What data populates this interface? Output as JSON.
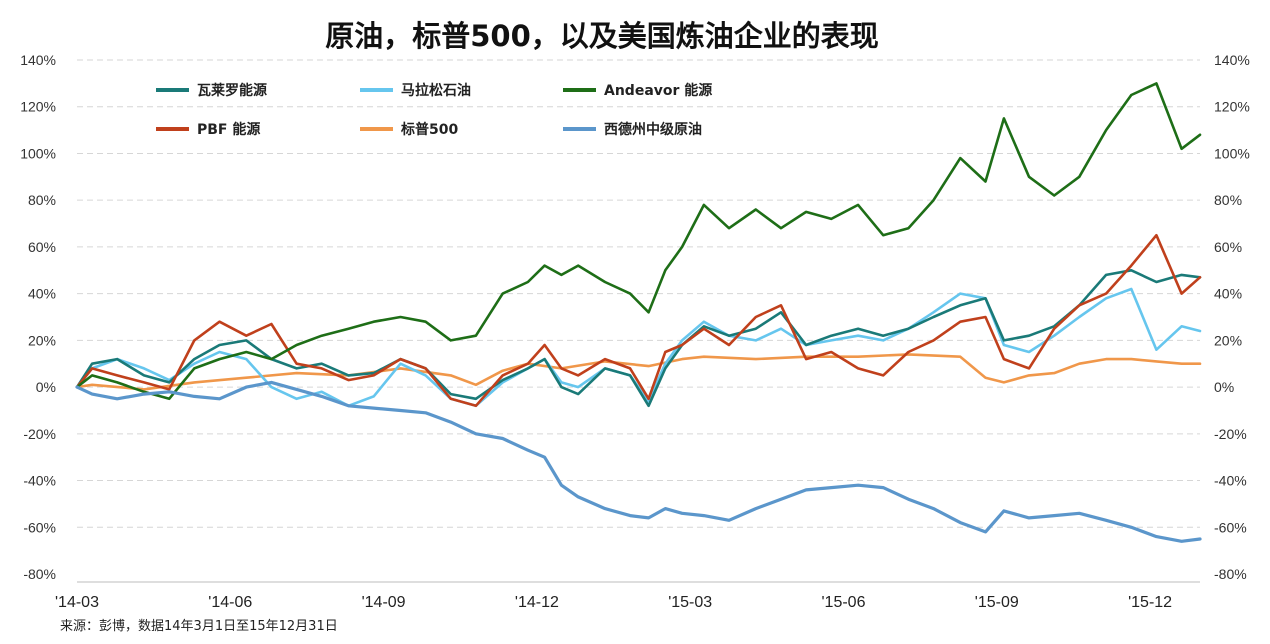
{
  "chart_data": {
    "type": "line",
    "title": "原油，标普500，以及美国炼油企业的表现",
    "source": "来源：彭博，数据14年3月1日至15年12月31日",
    "x_ticks": [
      "'14-03",
      "'14-06",
      "'14-09",
      "'14-12",
      "'15-03",
      "'15-06",
      "'15-09",
      "'15-12"
    ],
    "y_ticks": [
      "140%",
      "120%",
      "100%",
      "80%",
      "60%",
      "40%",
      "20%",
      "0%",
      "-20%",
      "-40%",
      "-60%",
      "-80%"
    ],
    "ylim": [
      -80,
      140
    ],
    "y_unit": "%",
    "grid": "horizontal dashed",
    "legend_position": "top-left",
    "x_start": "2014-03-01",
    "x_end": "2015-12-31",
    "series": [
      {
        "name": "瓦莱罗能源",
        "color": "#1a7a78",
        "points": [
          [
            "2014-03-01",
            0
          ],
          [
            "2014-03-10",
            10
          ],
          [
            "2014-03-25",
            12
          ],
          [
            "2014-04-10",
            5
          ],
          [
            "2014-04-25",
            2
          ],
          [
            "2014-05-10",
            12
          ],
          [
            "2014-05-25",
            18
          ],
          [
            "2014-06-10",
            20
          ],
          [
            "2014-06-25",
            12
          ],
          [
            "2014-07-10",
            8
          ],
          [
            "2014-07-25",
            10
          ],
          [
            "2014-08-10",
            5
          ],
          [
            "2014-08-25",
            6
          ],
          [
            "2014-09-10",
            12
          ],
          [
            "2014-09-25",
            8
          ],
          [
            "2014-10-10",
            -3
          ],
          [
            "2014-10-25",
            -5
          ],
          [
            "2014-11-10",
            3
          ],
          [
            "2014-11-25",
            8
          ],
          [
            "2014-12-05",
            12
          ],
          [
            "2014-12-15",
            0
          ],
          [
            "2014-12-25",
            -3
          ],
          [
            "2015-01-10",
            8
          ],
          [
            "2015-01-25",
            5
          ],
          [
            "2015-02-05",
            -8
          ],
          [
            "2015-02-15",
            8
          ],
          [
            "2015-02-25",
            18
          ],
          [
            "2015-03-10",
            26
          ],
          [
            "2015-03-25",
            22
          ],
          [
            "2015-04-10",
            25
          ],
          [
            "2015-04-25",
            32
          ],
          [
            "2015-05-10",
            18
          ],
          [
            "2015-05-25",
            22
          ],
          [
            "2015-06-10",
            25
          ],
          [
            "2015-06-25",
            22
          ],
          [
            "2015-07-10",
            25
          ],
          [
            "2015-07-25",
            30
          ],
          [
            "2015-08-10",
            35
          ],
          [
            "2015-08-25",
            38
          ],
          [
            "2015-09-05",
            20
          ],
          [
            "2015-09-20",
            22
          ],
          [
            "2015-10-05",
            26
          ],
          [
            "2015-10-20",
            35
          ],
          [
            "2015-11-05",
            48
          ],
          [
            "2015-11-20",
            50
          ],
          [
            "2015-12-05",
            45
          ],
          [
            "2015-12-20",
            48
          ],
          [
            "2015-12-31",
            47
          ]
        ]
      },
      {
        "name": "马拉松石油",
        "color": "#66c6ee",
        "points": [
          [
            "2014-03-01",
            0
          ],
          [
            "2014-03-10",
            8
          ],
          [
            "2014-03-25",
            12
          ],
          [
            "2014-04-10",
            8
          ],
          [
            "2014-04-25",
            3
          ],
          [
            "2014-05-10",
            10
          ],
          [
            "2014-05-25",
            15
          ],
          [
            "2014-06-10",
            12
          ],
          [
            "2014-06-25",
            0
          ],
          [
            "2014-07-10",
            -5
          ],
          [
            "2014-07-25",
            -2
          ],
          [
            "2014-08-10",
            -8
          ],
          [
            "2014-08-25",
            -4
          ],
          [
            "2014-09-10",
            10
          ],
          [
            "2014-09-25",
            5
          ],
          [
            "2014-10-10",
            -5
          ],
          [
            "2014-10-25",
            -8
          ],
          [
            "2014-11-10",
            2
          ],
          [
            "2014-11-25",
            8
          ],
          [
            "2014-12-05",
            12
          ],
          [
            "2014-12-15",
            2
          ],
          [
            "2014-12-25",
            0
          ],
          [
            "2015-01-10",
            8
          ],
          [
            "2015-01-25",
            5
          ],
          [
            "2015-02-05",
            -6
          ],
          [
            "2015-02-15",
            10
          ],
          [
            "2015-02-25",
            20
          ],
          [
            "2015-03-10",
            28
          ],
          [
            "2015-03-25",
            22
          ],
          [
            "2015-04-10",
            20
          ],
          [
            "2015-04-25",
            25
          ],
          [
            "2015-05-10",
            18
          ],
          [
            "2015-05-25",
            20
          ],
          [
            "2015-06-10",
            22
          ],
          [
            "2015-06-25",
            20
          ],
          [
            "2015-07-10",
            25
          ],
          [
            "2015-07-25",
            32
          ],
          [
            "2015-08-10",
            40
          ],
          [
            "2015-08-25",
            38
          ],
          [
            "2015-09-05",
            18
          ],
          [
            "2015-09-20",
            15
          ],
          [
            "2015-10-05",
            22
          ],
          [
            "2015-10-20",
            30
          ],
          [
            "2015-11-05",
            38
          ],
          [
            "2015-11-20",
            42
          ],
          [
            "2015-12-05",
            16
          ],
          [
            "2015-12-20",
            26
          ],
          [
            "2015-12-31",
            24
          ]
        ]
      },
      {
        "name": "Andeavor 能源",
        "color": "#1e6e17",
        "points": [
          [
            "2014-03-01",
            0
          ],
          [
            "2014-03-10",
            5
          ],
          [
            "2014-03-25",
            2
          ],
          [
            "2014-04-10",
            -2
          ],
          [
            "2014-04-25",
            -5
          ],
          [
            "2014-05-10",
            8
          ],
          [
            "2014-05-25",
            12
          ],
          [
            "2014-06-10",
            15
          ],
          [
            "2014-06-25",
            12
          ],
          [
            "2014-07-10",
            18
          ],
          [
            "2014-07-25",
            22
          ],
          [
            "2014-08-10",
            25
          ],
          [
            "2014-08-25",
            28
          ],
          [
            "2014-09-10",
            30
          ],
          [
            "2014-09-25",
            28
          ],
          [
            "2014-10-10",
            20
          ],
          [
            "2014-10-25",
            22
          ],
          [
            "2014-11-10",
            40
          ],
          [
            "2014-11-25",
            45
          ],
          [
            "2014-12-05",
            52
          ],
          [
            "2014-12-15",
            48
          ],
          [
            "2014-12-25",
            52
          ],
          [
            "2015-01-10",
            45
          ],
          [
            "2015-01-25",
            40
          ],
          [
            "2015-02-05",
            32
          ],
          [
            "2015-02-15",
            50
          ],
          [
            "2015-02-25",
            60
          ],
          [
            "2015-03-10",
            78
          ],
          [
            "2015-03-25",
            68
          ],
          [
            "2015-04-10",
            76
          ],
          [
            "2015-04-25",
            68
          ],
          [
            "2015-05-10",
            75
          ],
          [
            "2015-05-25",
            72
          ],
          [
            "2015-06-10",
            78
          ],
          [
            "2015-06-25",
            65
          ],
          [
            "2015-07-10",
            68
          ],
          [
            "2015-07-25",
            80
          ],
          [
            "2015-08-10",
            98
          ],
          [
            "2015-08-25",
            88
          ],
          [
            "2015-09-05",
            115
          ],
          [
            "2015-09-20",
            90
          ],
          [
            "2015-10-05",
            82
          ],
          [
            "2015-10-20",
            90
          ],
          [
            "2015-11-05",
            110
          ],
          [
            "2015-11-20",
            125
          ],
          [
            "2015-12-05",
            130
          ],
          [
            "2015-12-20",
            102
          ],
          [
            "2015-12-31",
            108
          ]
        ]
      },
      {
        "name": "PBF 能源",
        "color": "#c0401c",
        "points": [
          [
            "2014-03-01",
            0
          ],
          [
            "2014-03-10",
            8
          ],
          [
            "2014-03-25",
            5
          ],
          [
            "2014-04-10",
            2
          ],
          [
            "2014-04-25",
            -1
          ],
          [
            "2014-05-10",
            20
          ],
          [
            "2014-05-25",
            28
          ],
          [
            "2014-06-10",
            22
          ],
          [
            "2014-06-25",
            27
          ],
          [
            "2014-07-10",
            10
          ],
          [
            "2014-07-25",
            8
          ],
          [
            "2014-08-10",
            3
          ],
          [
            "2014-08-25",
            5
          ],
          [
            "2014-09-10",
            12
          ],
          [
            "2014-09-25",
            8
          ],
          [
            "2014-10-10",
            -5
          ],
          [
            "2014-10-25",
            -8
          ],
          [
            "2014-11-10",
            5
          ],
          [
            "2014-11-25",
            10
          ],
          [
            "2014-12-05",
            18
          ],
          [
            "2014-12-15",
            8
          ],
          [
            "2014-12-25",
            5
          ],
          [
            "2015-01-10",
            12
          ],
          [
            "2015-01-25",
            8
          ],
          [
            "2015-02-05",
            -5
          ],
          [
            "2015-02-15",
            15
          ],
          [
            "2015-02-25",
            18
          ],
          [
            "2015-03-10",
            25
          ],
          [
            "2015-03-25",
            18
          ],
          [
            "2015-04-10",
            30
          ],
          [
            "2015-04-25",
            35
          ],
          [
            "2015-05-10",
            12
          ],
          [
            "2015-05-25",
            15
          ],
          [
            "2015-06-10",
            8
          ],
          [
            "2015-06-25",
            5
          ],
          [
            "2015-07-10",
            15
          ],
          [
            "2015-07-25",
            20
          ],
          [
            "2015-08-10",
            28
          ],
          [
            "2015-08-25",
            30
          ],
          [
            "2015-09-05",
            12
          ],
          [
            "2015-09-20",
            8
          ],
          [
            "2015-10-05",
            25
          ],
          [
            "2015-10-20",
            35
          ],
          [
            "2015-11-05",
            40
          ],
          [
            "2015-11-20",
            52
          ],
          [
            "2015-12-05",
            65
          ],
          [
            "2015-12-20",
            40
          ],
          [
            "2015-12-31",
            47
          ]
        ]
      },
      {
        "name": "标普500",
        "color": "#f0974a",
        "points": [
          [
            "2014-03-01",
            0
          ],
          [
            "2014-03-10",
            1
          ],
          [
            "2014-04-10",
            -1
          ],
          [
            "2014-05-10",
            2
          ],
          [
            "2014-06-10",
            4
          ],
          [
            "2014-07-10",
            6
          ],
          [
            "2014-08-10",
            5
          ],
          [
            "2014-09-10",
            8
          ],
          [
            "2014-10-10",
            5
          ],
          [
            "2014-10-25",
            1
          ],
          [
            "2014-11-10",
            7
          ],
          [
            "2014-11-25",
            10
          ],
          [
            "2014-12-15",
            8
          ],
          [
            "2015-01-10",
            11
          ],
          [
            "2015-02-05",
            9
          ],
          [
            "2015-02-25",
            12
          ],
          [
            "2015-03-10",
            13
          ],
          [
            "2015-04-10",
            12
          ],
          [
            "2015-05-10",
            13
          ],
          [
            "2015-06-10",
            13
          ],
          [
            "2015-07-10",
            14
          ],
          [
            "2015-08-10",
            13
          ],
          [
            "2015-08-25",
            4
          ],
          [
            "2015-09-05",
            2
          ],
          [
            "2015-09-20",
            5
          ],
          [
            "2015-10-05",
            6
          ],
          [
            "2015-10-20",
            10
          ],
          [
            "2015-11-05",
            12
          ],
          [
            "2015-11-20",
            12
          ],
          [
            "2015-12-05",
            11
          ],
          [
            "2015-12-20",
            10
          ],
          [
            "2015-12-31",
            10
          ]
        ]
      },
      {
        "name": "西德州中级原油",
        "color": "#5b96cb",
        "points": [
          [
            "2014-03-01",
            0
          ],
          [
            "2014-03-10",
            -3
          ],
          [
            "2014-03-25",
            -5
          ],
          [
            "2014-04-10",
            -3
          ],
          [
            "2014-04-25",
            -2
          ],
          [
            "2014-05-10",
            -4
          ],
          [
            "2014-05-25",
            -5
          ],
          [
            "2014-06-10",
            0
          ],
          [
            "2014-06-25",
            2
          ],
          [
            "2014-07-10",
            -1
          ],
          [
            "2014-07-25",
            -4
          ],
          [
            "2014-08-10",
            -8
          ],
          [
            "2014-08-25",
            -9
          ],
          [
            "2014-09-10",
            -10
          ],
          [
            "2014-09-25",
            -11
          ],
          [
            "2014-10-10",
            -15
          ],
          [
            "2014-10-25",
            -20
          ],
          [
            "2014-11-10",
            -22
          ],
          [
            "2014-11-25",
            -27
          ],
          [
            "2014-12-05",
            -30
          ],
          [
            "2014-12-15",
            -42
          ],
          [
            "2014-12-25",
            -47
          ],
          [
            "2015-01-10",
            -52
          ],
          [
            "2015-01-25",
            -55
          ],
          [
            "2015-02-05",
            -56
          ],
          [
            "2015-02-15",
            -52
          ],
          [
            "2015-02-25",
            -54
          ],
          [
            "2015-03-10",
            -55
          ],
          [
            "2015-03-25",
            -57
          ],
          [
            "2015-04-10",
            -52
          ],
          [
            "2015-04-25",
            -48
          ],
          [
            "2015-05-10",
            -44
          ],
          [
            "2015-05-25",
            -43
          ],
          [
            "2015-06-10",
            -42
          ],
          [
            "2015-06-25",
            -43
          ],
          [
            "2015-07-10",
            -48
          ],
          [
            "2015-07-25",
            -52
          ],
          [
            "2015-08-10",
            -58
          ],
          [
            "2015-08-25",
            -62
          ],
          [
            "2015-09-05",
            -53
          ],
          [
            "2015-09-20",
            -56
          ],
          [
            "2015-10-05",
            -55
          ],
          [
            "2015-10-20",
            -54
          ],
          [
            "2015-11-05",
            -57
          ],
          [
            "2015-11-20",
            -60
          ],
          [
            "2015-12-05",
            -64
          ],
          [
            "2015-12-20",
            -66
          ],
          [
            "2015-12-31",
            -65
          ]
        ]
      }
    ]
  }
}
